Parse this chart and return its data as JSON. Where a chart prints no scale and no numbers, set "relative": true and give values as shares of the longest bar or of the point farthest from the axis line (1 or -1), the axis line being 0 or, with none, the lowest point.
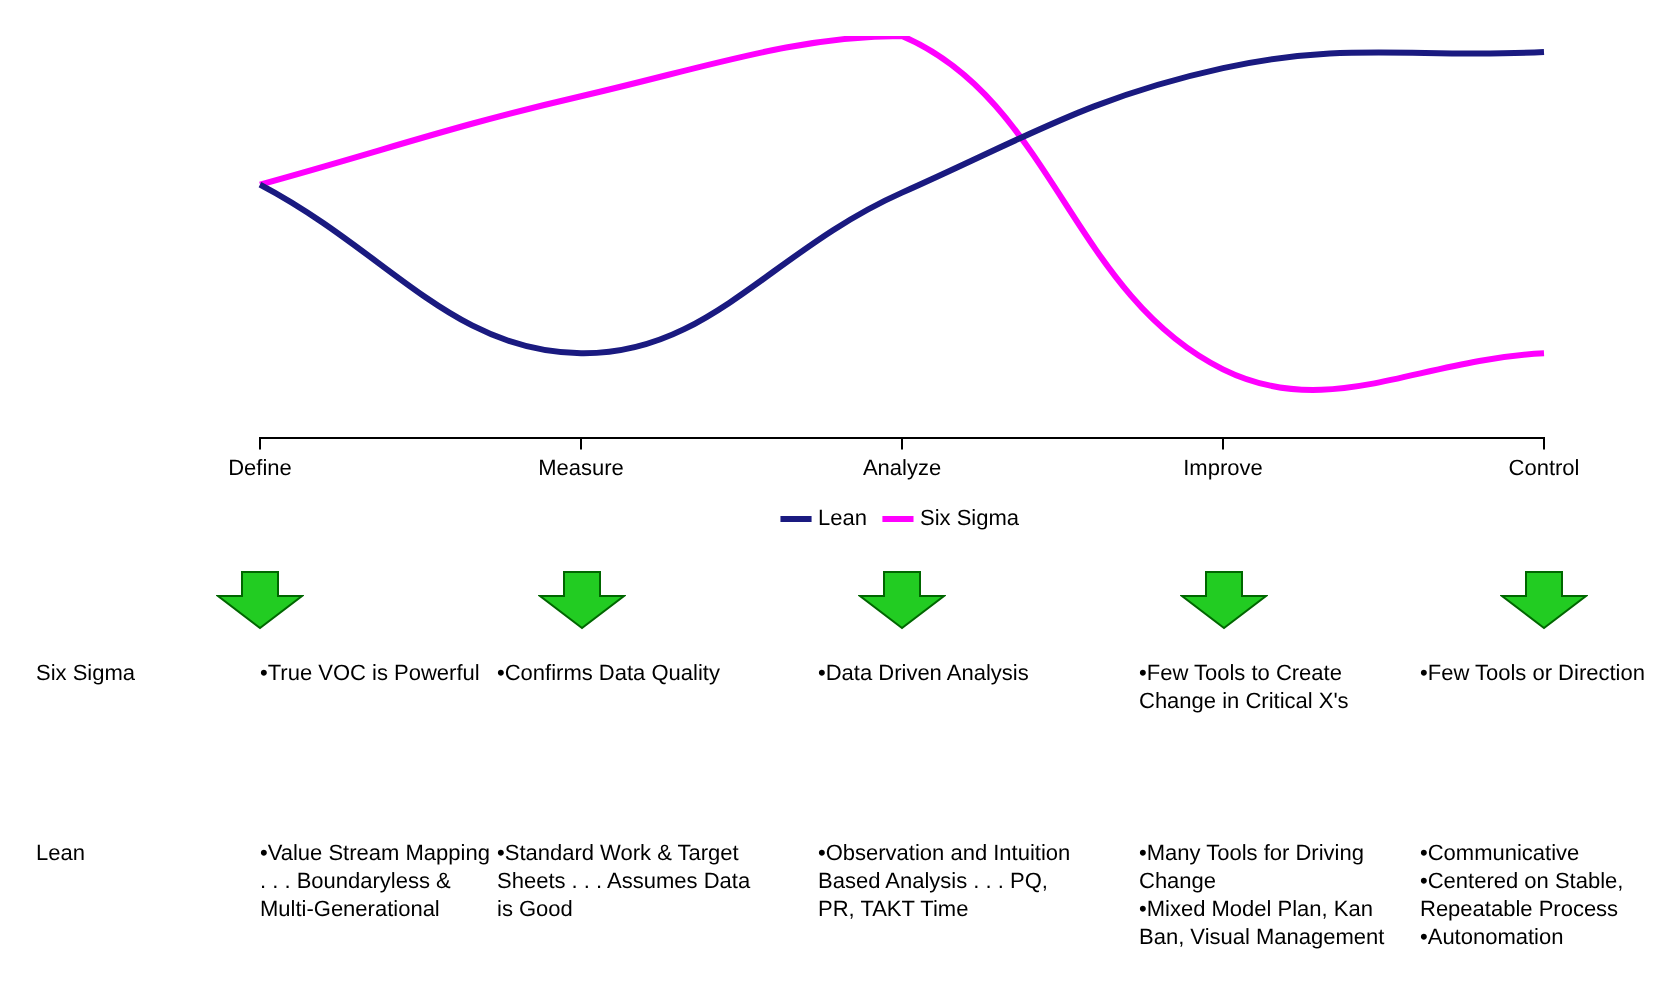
{
  "chart_data": {
    "type": "line",
    "relative": true,
    "categories": [
      "Define",
      "Measure",
      "Analyze",
      "Improve",
      "Control"
    ],
    "series": [
      {
        "name": "Lean",
        "color": "#1a1a80",
        "values": [
          0.63,
          0.21,
          0.61,
          0.92,
          0.96
        ]
      },
      {
        "name": "Six Sigma",
        "color": "#ff00ff",
        "values": [
          0.63,
          0.85,
          1,
          0.17,
          0.21
        ]
      }
    ],
    "legend": "bottom",
    "grid": false,
    "marker": "none",
    "line_style": "solid",
    "annotations": [
      "Six Sigma",
      "•True VOC is Powerful",
      "•Confirms Data Quality",
      "•Data Driven Analysis",
      "•Few Tools to Create Change in Critical X's",
      "•Few Tools or Direction",
      "Lean",
      "•Value Stream Mapping . . . Boundaryless & Multi-Generational",
      "•Standard Work & Target Sheets . . . Assumes Data is Good",
      "•Observation and Intuition Based Analysis . . . PQ, PR, TAKT Time",
      "•Many Tools for Driving Change\n•Mixed Model Plan, Kan Ban, Visual Management",
      "•Communicative\n•Centered on Stable, Repeatable Process\n•Autonomation"
    ]
  }
}
